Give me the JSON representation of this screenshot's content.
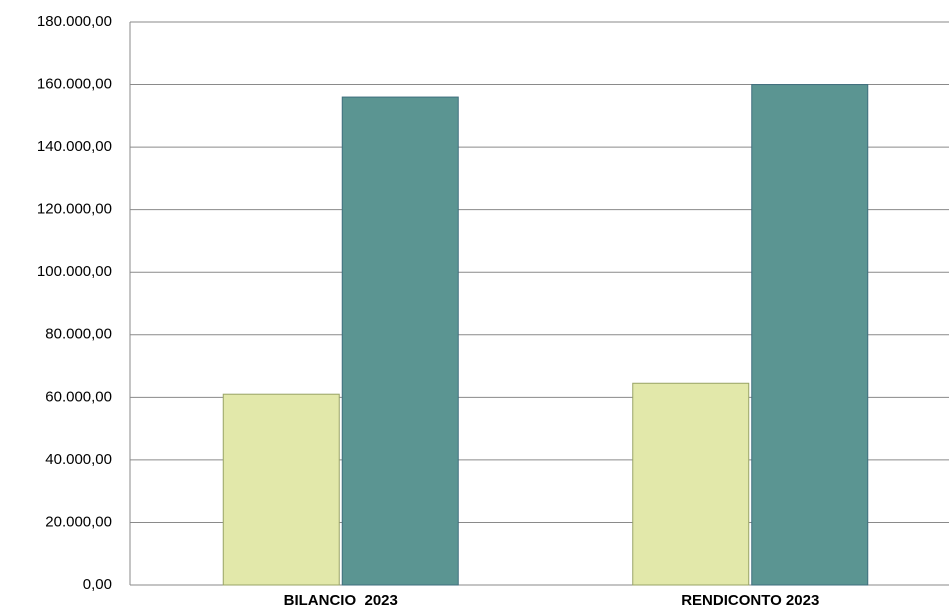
{
  "chart_data": {
    "type": "bar",
    "categories": [
      "BILANCIO  2023",
      "RENDICONTO 2023"
    ],
    "series": [
      {
        "color": "#e2e8aa",
        "values": [
          61000,
          64500
        ]
      },
      {
        "color": "#5b9592",
        "values": [
          156000,
          160000
        ]
      }
    ],
    "ylim": [
      0,
      180000
    ],
    "yticks": [
      {
        "value": 0,
        "label": "0,00"
      },
      {
        "value": 20000,
        "label": "20.000,00"
      },
      {
        "value": 40000,
        "label": "40.000,00"
      },
      {
        "value": 60000,
        "label": "60.000,00"
      },
      {
        "value": 80000,
        "label": "80.000,00"
      },
      {
        "value": 100000,
        "label": "100.000,00"
      },
      {
        "value": 120000,
        "label": "120.000,00"
      },
      {
        "value": 140000,
        "label": "140.000,00"
      },
      {
        "value": 160000,
        "label": "160.000,00"
      },
      {
        "value": 180000,
        "label": "180.000,00"
      }
    ],
    "grid": true
  }
}
